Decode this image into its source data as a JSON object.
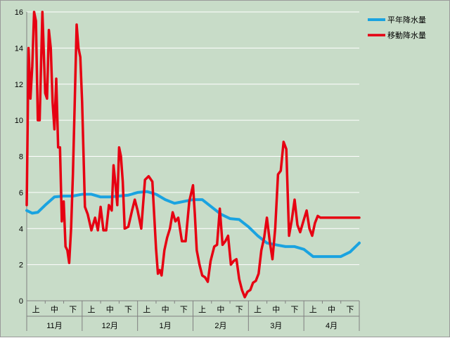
{
  "chart_data": {
    "type": "line",
    "ylim": [
      0,
      16
    ],
    "y_ticks": [
      "0",
      "2",
      "4",
      "6",
      "8",
      "10",
      "12",
      "14",
      "16"
    ],
    "grid": true,
    "legend_position": "top-right",
    "colors": {
      "plot_background": "#c8dcc8",
      "gridline": "#ffffff",
      "normal": "#1aa3e0",
      "moving": "#e60012"
    },
    "x_major_labels": [
      "11月",
      "12月",
      "1月",
      "2月",
      "3月",
      "4月"
    ],
    "x_minor_labels": [
      "上",
      "中",
      "下"
    ],
    "series": [
      {
        "name": "平年降水量",
        "color": "#1aa3e0",
        "x": [
          0,
          0.3,
          0.6,
          1,
          1.5,
          2,
          2.5,
          3,
          3.5,
          4,
          4.5,
          5,
          5.5,
          6,
          6.5,
          7,
          7.5,
          8,
          8.5,
          9,
          9.5,
          10,
          10.5,
          11,
          11.5,
          12,
          12.5,
          13,
          13.5,
          14,
          14.5,
          15,
          15.5,
          16,
          16.5,
          17,
          17.5,
          18
        ],
        "values": [
          5.0,
          4.85,
          4.9,
          5.3,
          5.75,
          5.8,
          5.8,
          5.9,
          5.9,
          5.75,
          5.75,
          5.8,
          5.85,
          6.0,
          6.05,
          5.9,
          5.6,
          5.4,
          5.5,
          5.6,
          5.6,
          5.2,
          4.8,
          4.55,
          4.5,
          4.1,
          3.6,
          3.2,
          3.1,
          3.0,
          3.0,
          2.85,
          2.45,
          2.45,
          2.45,
          2.45,
          2.7,
          3.2
        ]
      },
      {
        "name": "移動降水量",
        "color": "#e60012",
        "x": [
          0,
          0.1,
          0.2,
          0.3,
          0.4,
          0.5,
          0.6,
          0.7,
          0.85,
          1.0,
          1.1,
          1.2,
          1.3,
          1.4,
          1.5,
          1.6,
          1.7,
          1.8,
          1.9,
          2.0,
          2.1,
          2.2,
          2.3,
          2.4,
          2.5,
          2.6,
          2.7,
          2.8,
          2.9,
          3.0,
          3.15,
          3.3,
          3.5,
          3.7,
          3.85,
          4.0,
          4.15,
          4.3,
          4.45,
          4.6,
          4.7,
          4.8,
          4.9,
          5.0,
          5.1,
          5.2,
          5.3,
          5.5,
          5.7,
          5.85,
          6.0,
          6.2,
          6.4,
          6.6,
          6.8,
          7.0,
          7.1,
          7.2,
          7.3,
          7.45,
          7.6,
          7.75,
          7.9,
          8.05,
          8.2,
          8.4,
          8.6,
          8.8,
          9.0,
          9.1,
          9.2,
          9.35,
          9.5,
          9.65,
          9.8,
          9.95,
          10.05,
          10.15,
          10.3,
          10.45,
          10.6,
          10.75,
          10.9,
          11.05,
          11.2,
          11.35,
          11.5,
          11.65,
          11.8,
          11.95,
          12.1,
          12.25,
          12.4,
          12.55,
          12.7,
          12.85,
          13.0,
          13.15,
          13.3,
          13.45,
          13.6,
          13.75,
          13.9,
          14.05,
          14.2,
          14.35,
          14.5,
          14.65,
          14.8,
          15.0,
          15.15,
          15.3,
          15.45,
          15.6,
          15.75,
          15.9,
          16.1,
          16.3,
          16.5,
          16.7,
          16.9,
          17.05,
          17.2,
          17.35,
          17.5,
          17.65,
          17.8,
          17.95,
          18.1
        ],
        "values": [
          5.3,
          14.0,
          11.2,
          13.0,
          16.0,
          15.5,
          10.0,
          10.0,
          16.0,
          11.5,
          11.2,
          15.0,
          14.0,
          11.0,
          9.5,
          12.3,
          8.5,
          8.5,
          4.4,
          5.5,
          3.0,
          2.8,
          2.1,
          4.0,
          7.0,
          11.0,
          15.3,
          14.0,
          13.5,
          11.0,
          5.2,
          4.8,
          3.9,
          4.6,
          3.9,
          5.2,
          3.9,
          3.9,
          5.3,
          5.0,
          7.5,
          6.5,
          5.3,
          8.5,
          8.0,
          6.6,
          4.0,
          4.1,
          5.0,
          5.6,
          5.0,
          4.0,
          6.7,
          6.9,
          6.6,
          2.9,
          1.5,
          1.7,
          1.4,
          2.8,
          3.5,
          4.0,
          4.9,
          4.4,
          4.6,
          3.3,
          3.3,
          5.5,
          6.4,
          4.8,
          2.8,
          2.0,
          1.4,
          1.3,
          1.05,
          2.2,
          2.6,
          3.0,
          3.1,
          5.1,
          3.1,
          3.3,
          3.6,
          2.0,
          2.2,
          2.3,
          1.2,
          0.6,
          0.2,
          0.5,
          0.6,
          1.0,
          1.1,
          1.5,
          2.8,
          3.5,
          4.6,
          3.3,
          2.3,
          4.0,
          7.0,
          7.2,
          8.8,
          8.4,
          3.6,
          4.5,
          5.6,
          4.2,
          3.8,
          4.5,
          5.0,
          4.0,
          3.6,
          4.3,
          4.7,
          4.6,
          4.6,
          4.6,
          4.6,
          4.6,
          4.6,
          4.6,
          4.6,
          4.6,
          4.6,
          4.6,
          4.6,
          4.6,
          4.6
        ]
      }
    ]
  }
}
